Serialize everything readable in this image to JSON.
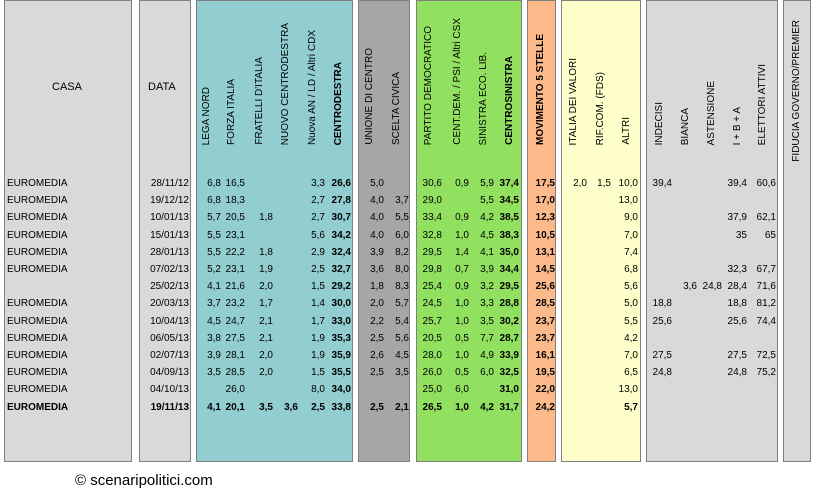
{
  "headers": {
    "casa": "CASA",
    "data": "DATA",
    "cdx": [
      "LEGA NORD",
      "FORZA ITALIA",
      "FRATELLI D'ITALIA",
      "NUOVO CENTRODESTRA",
      "Nuova AN / LD / Altri CDX",
      "CENTRODESTRA"
    ],
    "centro": [
      "UNIONE DI CENTRO",
      "SCELTA CIVICA"
    ],
    "csx": [
      "PARTITO DEMOCRATICO",
      "CENT.DEM. / PSI / Altri CSX",
      "SINISTRA ECO. LIB.",
      "CENTROSINISTRA"
    ],
    "m5s": "MOVIMENTO 5 STELLE",
    "altri": [
      "ITALIA DEI VALORI",
      "RIF.COM. (FDS)",
      "ALTRI"
    ],
    "el": [
      "INDECISI",
      "BIANCA",
      "ASTENSIONE",
      "I + B + A",
      "ELETTORI ATTIVI"
    ],
    "fiducia": "FIDUCIA GOVERNO/PREMIER"
  },
  "rows": [
    {
      "casa": "EUROMEDIA",
      "data": "28/11/12",
      "v": [
        "6,8",
        "16,5",
        "",
        "",
        "3,3",
        "26,6",
        "5,0",
        "",
        "30,6",
        "0,9",
        "5,9",
        "37,4",
        "17,5",
        "2,0",
        "1,5",
        "10,0",
        "39,4",
        "",
        "",
        "39,4",
        "60,6",
        ""
      ]
    },
    {
      "casa": "EUROMEDIA",
      "data": "19/12/12",
      "v": [
        "6,8",
        "18,3",
        "",
        "",
        "2,7",
        "27,8",
        "4,0",
        "3,7",
        "29,0",
        "",
        "5,5",
        "34,5",
        "17,0",
        "",
        "",
        "13,0",
        "",
        "",
        "",
        "",
        "",
        ""
      ]
    },
    {
      "casa": "EUROMEDIA",
      "data": "10/01/13",
      "v": [
        "5,7",
        "20,5",
        "1,8",
        "",
        "2,7",
        "30,7",
        "4,0",
        "5,5",
        "33,4",
        "0,9",
        "4,2",
        "38,5",
        "12,3",
        "",
        "",
        "9,0",
        "",
        "",
        "",
        "37,9",
        "62,1",
        ""
      ]
    },
    {
      "casa": "EUROMEDIA",
      "data": "15/01/13",
      "v": [
        "5,5",
        "23,1",
        "",
        "",
        "5,6",
        "34,2",
        "4,0",
        "6,0",
        "32,8",
        "1,0",
        "4,5",
        "38,3",
        "10,5",
        "",
        "",
        "7,0",
        "",
        "",
        "",
        "35",
        "65",
        ""
      ]
    },
    {
      "casa": "EUROMEDIA",
      "data": "28/01/13",
      "v": [
        "5,5",
        "22,2",
        "1,8",
        "",
        "2,9",
        "32,4",
        "3,9",
        "8,2",
        "29,5",
        "1,4",
        "4,1",
        "35,0",
        "13,1",
        "",
        "",
        "7,4",
        "",
        "",
        "",
        "",
        "",
        ""
      ]
    },
    {
      "casa": "EUROMEDIA",
      "data": "07/02/13",
      "v": [
        "5,2",
        "23,1",
        "1,9",
        "",
        "2,5",
        "32,7",
        "3,6",
        "8,0",
        "29,8",
        "0,7",
        "3,9",
        "34,4",
        "14,5",
        "",
        "",
        "6,8",
        "",
        "",
        "",
        "32,3",
        "67,7",
        ""
      ]
    },
    {
      "casa": "",
      "data": "25/02/13",
      "v": [
        "4,1",
        "21,6",
        "2,0",
        "",
        "1,5",
        "29,2",
        "1,8",
        "8,3",
        "25,4",
        "0,9",
        "3,2",
        "29,5",
        "25,6",
        "",
        "",
        "5,6",
        "",
        "3,6",
        "24,8",
        "28,4",
        "71,6",
        ""
      ]
    },
    {
      "casa": "EUROMEDIA",
      "data": "20/03/13",
      "v": [
        "3,7",
        "23,2",
        "1,7",
        "",
        "1,4",
        "30,0",
        "2,0",
        "5,7",
        "24,5",
        "1,0",
        "3,3",
        "28,8",
        "28,5",
        "",
        "",
        "5,0",
        "18,8",
        "",
        "",
        "18,8",
        "81,2",
        ""
      ]
    },
    {
      "casa": "EUROMEDIA",
      "data": "10/04/13",
      "v": [
        "4,5",
        "24,7",
        "2,1",
        "",
        "1,7",
        "33,0",
        "2,2",
        "5,4",
        "25,7",
        "1,0",
        "3,5",
        "30,2",
        "23,7",
        "",
        "",
        "5,5",
        "25,6",
        "",
        "",
        "25,6",
        "74,4",
        ""
      ]
    },
    {
      "casa": "EUROMEDIA",
      "data": "06/05/13",
      "v": [
        "3,8",
        "27,5",
        "2,1",
        "",
        "1,9",
        "35,3",
        "2,5",
        "5,6",
        "20,5",
        "0,5",
        "7,7",
        "28,7",
        "23,7",
        "",
        "",
        "4,2",
        "",
        "",
        "",
        "",
        "",
        ""
      ]
    },
    {
      "casa": "EUROMEDIA",
      "data": "02/07/13",
      "v": [
        "3,9",
        "28,1",
        "2,0",
        "",
        "1,9",
        "35,9",
        "2,6",
        "4,5",
        "28,0",
        "1,0",
        "4,9",
        "33,9",
        "16,1",
        "",
        "",
        "7,0",
        "27,5",
        "",
        "",
        "27,5",
        "72,5",
        ""
      ]
    },
    {
      "casa": "EUROMEDIA",
      "data": "04/09/13",
      "v": [
        "3,5",
        "28,5",
        "2,0",
        "",
        "1,5",
        "35,5",
        "2,5",
        "3,5",
        "26,0",
        "0,5",
        "6,0",
        "32,5",
        "19,5",
        "",
        "",
        "6,5",
        "24,8",
        "",
        "",
        "24,8",
        "75,2",
        ""
      ]
    },
    {
      "casa": "EUROMEDIA",
      "data": "04/10/13",
      "v": [
        "",
        "26,0",
        "",
        "",
        "8,0",
        "34,0",
        "",
        "",
        "25,0",
        "6,0",
        "",
        "31,0",
        "22,0",
        "",
        "",
        "13,0",
        "",
        "",
        "",
        "",
        "",
        ""
      ]
    },
    {
      "casa": "EUROMEDIA",
      "data": "19/11/13",
      "v": [
        "4,1",
        "20,1",
        "3,5",
        "3,6",
        "2,5",
        "33,8",
        "2,5",
        "2,1",
        "26,5",
        "1,0",
        "4,2",
        "31,7",
        "24,2",
        "",
        "",
        "5,7",
        "",
        "",
        "",
        "",
        "",
        ""
      ]
    }
  ],
  "bold_cols": [
    5,
    11,
    12
  ],
  "last_row_bold": true,
  "colors": {
    "gray_panel": "#d9d9d9",
    "cdx": "#92cdd0",
    "centro": "#a6a6a6",
    "csx": "#92e060",
    "m5s": "#fcb98a",
    "altri": "#ffffcc"
  },
  "copyright": "© scenaripolitici.com"
}
